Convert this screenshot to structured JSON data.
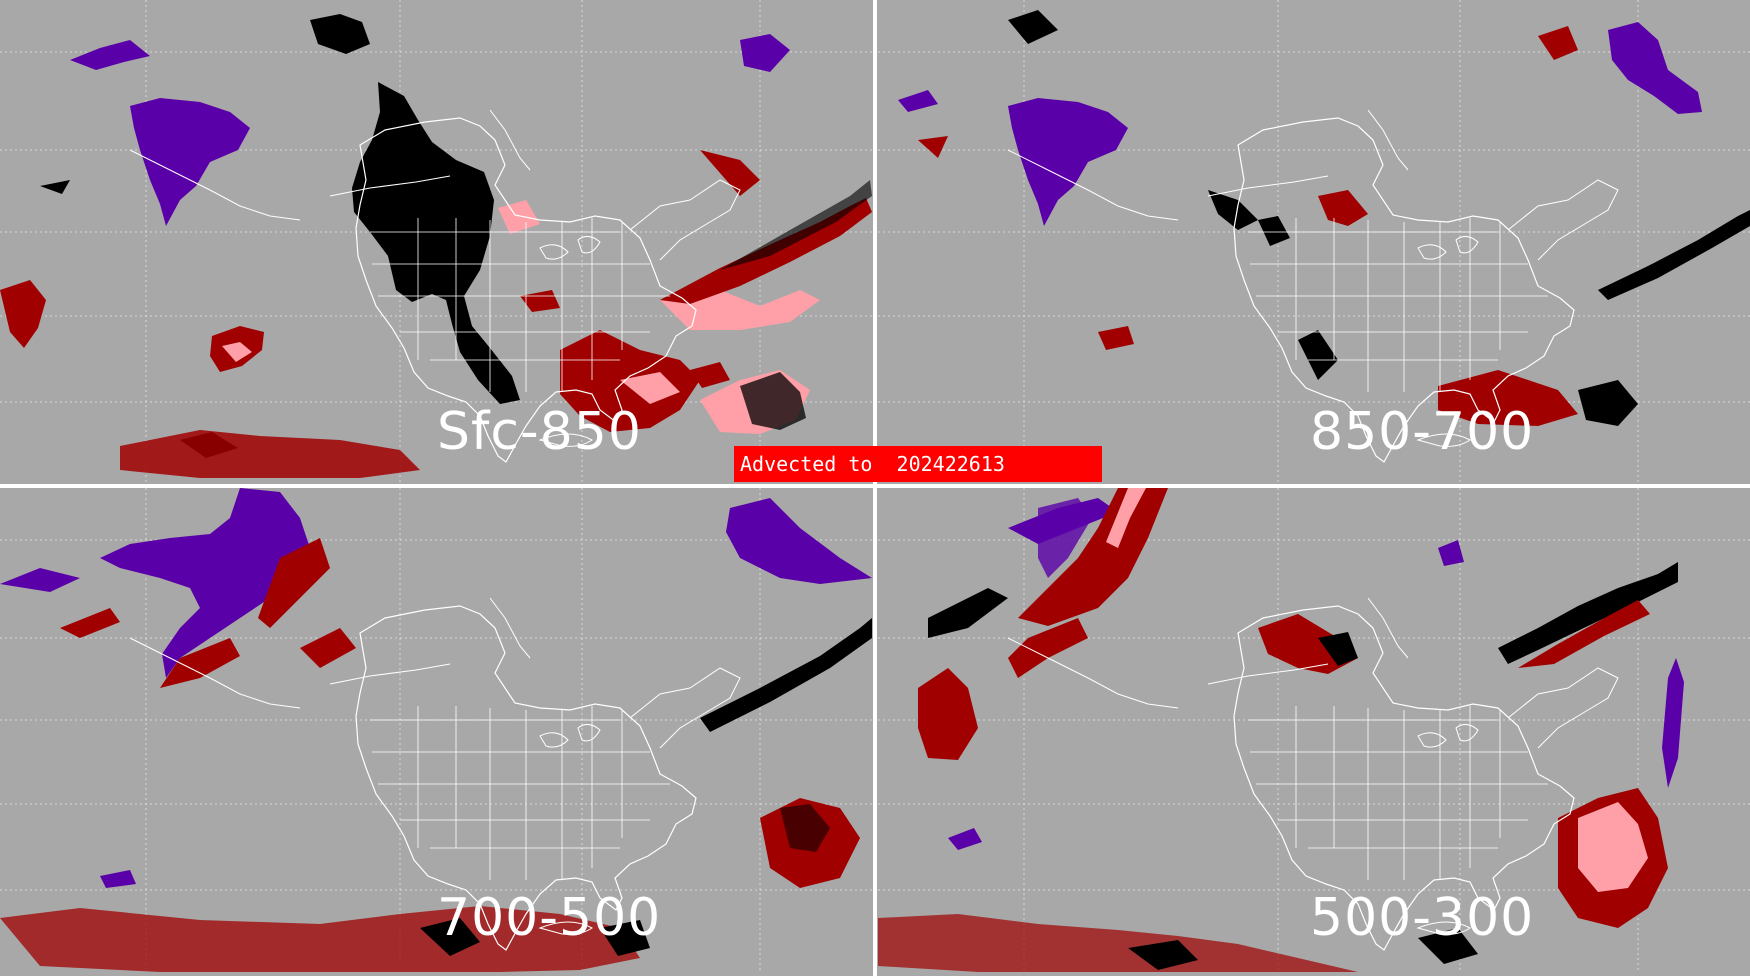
{
  "banner": {
    "text": "Advected to  202422613"
  },
  "panels": [
    {
      "label": "Sfc-850"
    },
    {
      "label": "850-700"
    },
    {
      "label": "700-500"
    },
    {
      "label": "500-300"
    }
  ],
  "colors": {
    "background": "#a8a8a8",
    "coastline": "#ffffff",
    "gridline": "#d8d8d8",
    "dark_red": "#a00000",
    "pink": "#ffa0a8",
    "black": "#000000",
    "purple": "#5a00a8",
    "banner": "#ff0000",
    "divider": "#ffffff"
  }
}
